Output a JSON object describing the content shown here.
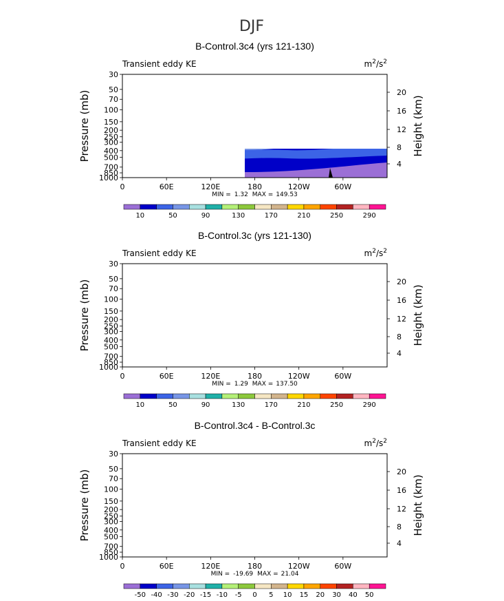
{
  "figure": {
    "suptitle": "DJF"
  },
  "chart_data": [
    {
      "type": "contour",
      "title": "B-Control.3c4 (yrs 121-130)",
      "left_label": "Transient eddy KE",
      "units_base": "m",
      "units_exp1": "2",
      "units_mid": "/s",
      "units_exp2": "2",
      "ylabel": "Pressure (mb)",
      "y2label": "Height (km)",
      "xticks": [
        "0",
        "60E",
        "120E",
        "180",
        "120W",
        "60W"
      ],
      "yticks": [
        "30",
        "50",
        "70",
        "100",
        "150",
        "200",
        "250",
        "300",
        "400",
        "500",
        "700",
        "850",
        "1000"
      ],
      "y2ticks": [
        "20",
        "16",
        "12",
        "8",
        "4"
      ],
      "min_label": "MIN =",
      "min_value": "1.32",
      "max_label": "MAX =",
      "max_value": "149.53",
      "colorbar_labels": [
        "10",
        "50",
        "90",
        "130",
        "170",
        "210",
        "250",
        "290"
      ],
      "colorbar_colors": [
        "#9b6fd6",
        "#0000c8",
        "#3c64e6",
        "#7896e6",
        "#a8e0e0",
        "#20b0a8",
        "#b4f078",
        "#8cc83c",
        "#f5e6c3",
        "#d2b48c",
        "#ffd700",
        "#ffa500",
        "#ff4500",
        "#b22222",
        "#ffb6c1",
        "#ff1493"
      ]
    },
    {
      "type": "contour",
      "title": "B-Control.3c (yrs 121-130)",
      "left_label": "Transient eddy KE",
      "units_base": "m",
      "units_exp1": "2",
      "units_mid": "/s",
      "units_exp2": "2",
      "ylabel": "Pressure (mb)",
      "y2label": "Height (km)",
      "xticks": [
        "0",
        "60E",
        "120E",
        "180",
        "120W",
        "60W"
      ],
      "yticks": [
        "30",
        "50",
        "70",
        "100",
        "150",
        "200",
        "250",
        "300",
        "400",
        "500",
        "700",
        "850",
        "1000"
      ],
      "y2ticks": [
        "20",
        "16",
        "12",
        "8",
        "4"
      ],
      "min_label": "MIN =",
      "min_value": "1.29",
      "max_label": "MAX =",
      "max_value": "137.50",
      "colorbar_labels": [
        "10",
        "50",
        "90",
        "130",
        "170",
        "210",
        "250",
        "290"
      ],
      "colorbar_colors": [
        "#9b6fd6",
        "#0000c8",
        "#3c64e6",
        "#7896e6",
        "#a8e0e0",
        "#20b0a8",
        "#b4f078",
        "#8cc83c",
        "#f5e6c3",
        "#d2b48c",
        "#ffd700",
        "#ffa500",
        "#ff4500",
        "#b22222",
        "#ffb6c1",
        "#ff1493"
      ]
    },
    {
      "type": "contour",
      "title": "B-Control.3c4 - B-Control.3c",
      "left_label": "Transient eddy KE",
      "units_base": "m",
      "units_exp1": "2",
      "units_mid": "/s",
      "units_exp2": "2",
      "ylabel": "Pressure (mb)",
      "y2label": "Height (km)",
      "xticks": [
        "0",
        "60E",
        "120E",
        "180",
        "120W",
        "60W"
      ],
      "yticks": [
        "30",
        "50",
        "70",
        "100",
        "150",
        "200",
        "250",
        "300",
        "400",
        "500",
        "700",
        "850",
        "1000"
      ],
      "y2ticks": [
        "20",
        "16",
        "12",
        "8",
        "4"
      ],
      "min_label": "MIN =",
      "min_value": "-19.69",
      "max_label": "MAX =",
      "max_value": "21.04",
      "colorbar_labels": [
        "-50",
        "-40",
        "-30",
        "-20",
        "-15",
        "-10",
        "-5",
        "0",
        "5",
        "10",
        "15",
        "20",
        "30",
        "40",
        "50"
      ],
      "colorbar_colors": [
        "#9b6fd6",
        "#0000c8",
        "#3c64e6",
        "#7896e6",
        "#a8e0e0",
        "#20b0a8",
        "#b4f078",
        "#8cc83c",
        "#f5e6c3",
        "#d2b48c",
        "#ffd700",
        "#ffa500",
        "#ff4500",
        "#b22222",
        "#ffb6c1",
        "#ff1493"
      ]
    }
  ]
}
